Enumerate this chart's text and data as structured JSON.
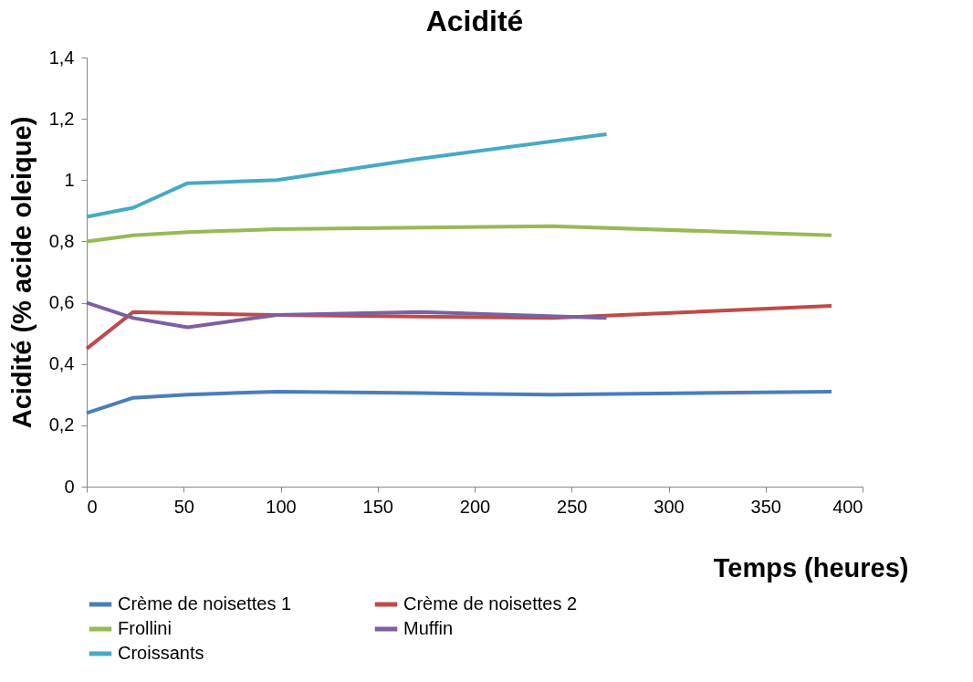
{
  "chart_data": {
    "type": "line",
    "title": "Acidité",
    "xlabel": "Temps (heures)",
    "ylabel": "Acidité  (% acide oleique)",
    "xlim": [
      0,
      400
    ],
    "xticks": [
      0,
      50,
      100,
      150,
      200,
      250,
      300,
      350,
      400
    ],
    "ylim": [
      0,
      1.4
    ],
    "yticks": [
      0,
      {
        "value": 0.2,
        "label": "0,2"
      },
      {
        "value": 0.4,
        "label": "0,4"
      },
      {
        "value": 0.6,
        "label": "0,6"
      },
      {
        "value": 0.8,
        "label": "0,8"
      },
      1,
      {
        "value": 1.2,
        "label": "1,2"
      },
      {
        "value": 1.4,
        "label": "1,4"
      }
    ],
    "grid": false,
    "legend": "bottom",
    "marker": "none",
    "line_style": "solid",
    "series": [
      {
        "name": "Crème de noisettes 1",
        "color": "#4a7ebb",
        "x": [
          0,
          24,
          52,
          98,
          172,
          240,
          384
        ],
        "values": [
          0.24,
          0.29,
          0.3,
          0.31,
          0.305,
          0.3,
          0.31
        ]
      },
      {
        "name": "Crème de noisettes 2",
        "color": "#be4b48",
        "x": [
          0,
          24,
          52,
          98,
          172,
          240,
          384
        ],
        "values": [
          0.45,
          0.57,
          0.565,
          0.56,
          0.555,
          0.55,
          0.59
        ]
      },
      {
        "name": "Frollini",
        "color": "#98b954",
        "x": [
          0,
          24,
          52,
          98,
          172,
          240,
          384
        ],
        "values": [
          0.8,
          0.82,
          0.83,
          0.84,
          0.845,
          0.85,
          0.82
        ]
      },
      {
        "name": "Muffin",
        "color": "#7d60a0",
        "x": [
          0,
          24,
          52,
          98,
          172,
          268
        ],
        "values": [
          0.6,
          0.55,
          0.52,
          0.56,
          0.57,
          0.55
        ]
      },
      {
        "name": "Croissants",
        "color": "#46aac5",
        "x": [
          0,
          24,
          52,
          98,
          172,
          268
        ],
        "values": [
          0.88,
          0.91,
          0.99,
          1.0,
          1.07,
          1.15
        ]
      }
    ]
  }
}
